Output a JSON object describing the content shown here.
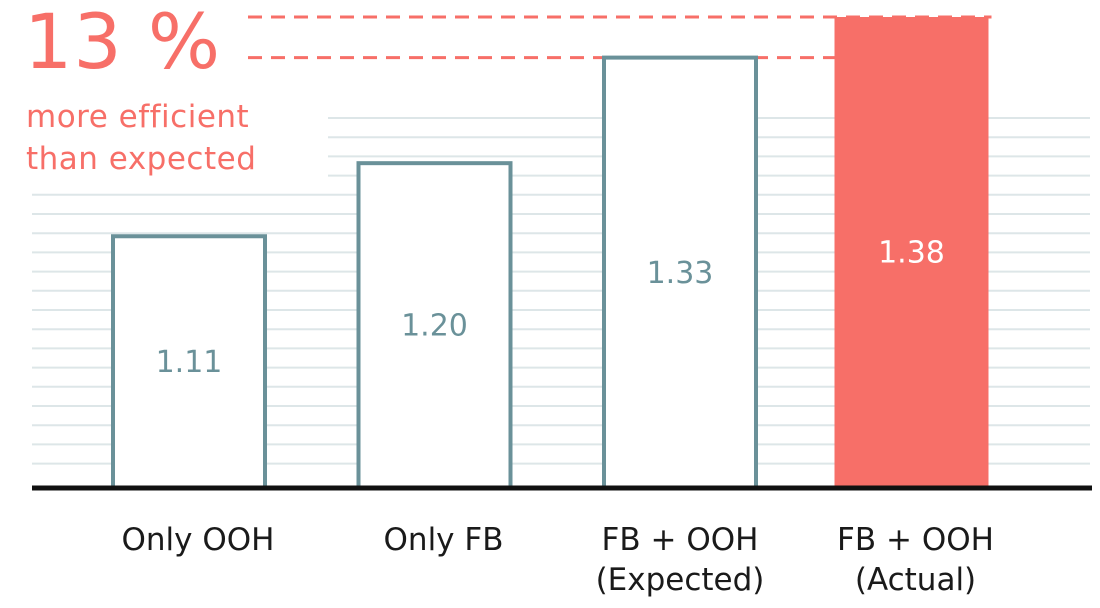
{
  "headline": {
    "value": "13 %",
    "line1": "more efficient",
    "line2": "than expected"
  },
  "colors": {
    "accent": "#f76f68",
    "outline": "#6a9199",
    "grid": "#dde6e8",
    "axis": "#111111"
  },
  "chart_data": {
    "type": "bar",
    "categories": [
      [
        "Only OOH"
      ],
      [
        "Only FB"
      ],
      [
        "FB + OOH",
        "(Expected)"
      ],
      [
        "FB + OOH",
        "(Actual)"
      ]
    ],
    "values": [
      1.11,
      1.2,
      1.33,
      1.38
    ],
    "data_labels": [
      "1.11",
      "1.20",
      "1.33",
      "1.38"
    ],
    "highlight_index": 3,
    "reference_lines": [
      1.33,
      1.38
    ],
    "title": "",
    "xlabel": "",
    "ylabel": "",
    "ylim": [
      0.8,
      1.38
    ],
    "grid": true,
    "legend": "none"
  }
}
